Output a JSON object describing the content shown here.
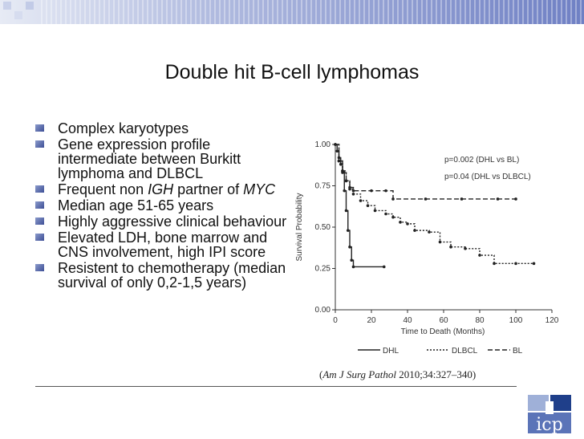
{
  "slide": {
    "title": "Double hit B-cell lymphomas",
    "bullets": {
      "b1": "Complex karyotypes",
      "b2": "Gene expression profile intermediate between Burkitt lymphoma and DLBCL",
      "b3a": "Frequent non ",
      "b3b": "IGH",
      "b3c": " partner of ",
      "b3d": "MYC",
      "b4": "Median age 51-65 years",
      "b5": "Highly  aggressive clinical behaviour",
      "b6": "Elevated LDH, bone marrow and CNS involvement, high IPI score",
      "b7": "Resistent to chemotherapy (median survival of only 0,2-1,5 years)"
    },
    "citation": {
      "open": "(",
      "journal": "Am J Surg Pathol",
      "rest": " 2010;34:327–340)"
    },
    "logo_text": "icp",
    "accent_color": "#3e4f96"
  },
  "chart_data": {
    "type": "line",
    "xlabel": "Time to Death (Months)",
    "ylabel": "Survival Probability",
    "xlim": [
      0,
      120
    ],
    "ylim": [
      0,
      1
    ],
    "xticks": [
      "0",
      "20",
      "40",
      "60",
      "80",
      "100",
      "120"
    ],
    "yticks": [
      "0.00",
      "0.25",
      "0.50",
      "0.75",
      "1.00"
    ],
    "annotations": [
      "p=0.002 (DHL vs BL)",
      "p=0.04 (DHL vs DLBCL)"
    ],
    "series": [
      {
        "name": "DHL",
        "dash": "solid",
        "points": [
          [
            0,
            1
          ],
          [
            1,
            0.96
          ],
          [
            2,
            0.92
          ],
          [
            3,
            0.88
          ],
          [
            4,
            0.84
          ],
          [
            5,
            0.72
          ],
          [
            6,
            0.6
          ],
          [
            7,
            0.48
          ],
          [
            8,
            0.38
          ],
          [
            9,
            0.3
          ],
          [
            10,
            0.26
          ],
          [
            27,
            0.26
          ]
        ]
      },
      {
        "name": "DLBCL",
        "dash": "dotted",
        "points": [
          [
            0,
            1
          ],
          [
            2,
            0.9
          ],
          [
            4,
            0.84
          ],
          [
            6,
            0.78
          ],
          [
            8,
            0.73
          ],
          [
            10,
            0.7
          ],
          [
            14,
            0.66
          ],
          [
            18,
            0.63
          ],
          [
            22,
            0.6
          ],
          [
            28,
            0.58
          ],
          [
            32,
            0.56
          ],
          [
            36,
            0.53
          ],
          [
            40,
            0.52
          ],
          [
            44,
            0.48
          ],
          [
            52,
            0.47
          ],
          [
            58,
            0.41
          ],
          [
            64,
            0.38
          ],
          [
            72,
            0.37
          ],
          [
            80,
            0.33
          ],
          [
            88,
            0.28
          ],
          [
            100,
            0.28
          ],
          [
            110,
            0.28
          ]
        ]
      },
      {
        "name": "BL",
        "dash": "dashed",
        "points": [
          [
            0,
            1
          ],
          [
            2,
            0.9
          ],
          [
            4,
            0.83
          ],
          [
            6,
            0.78
          ],
          [
            8,
            0.74
          ],
          [
            10,
            0.72
          ],
          [
            20,
            0.72
          ],
          [
            28,
            0.72
          ],
          [
            32,
            0.67
          ],
          [
            50,
            0.67
          ],
          [
            70,
            0.67
          ],
          [
            90,
            0.67
          ],
          [
            100,
            0.67
          ]
        ]
      }
    ]
  }
}
